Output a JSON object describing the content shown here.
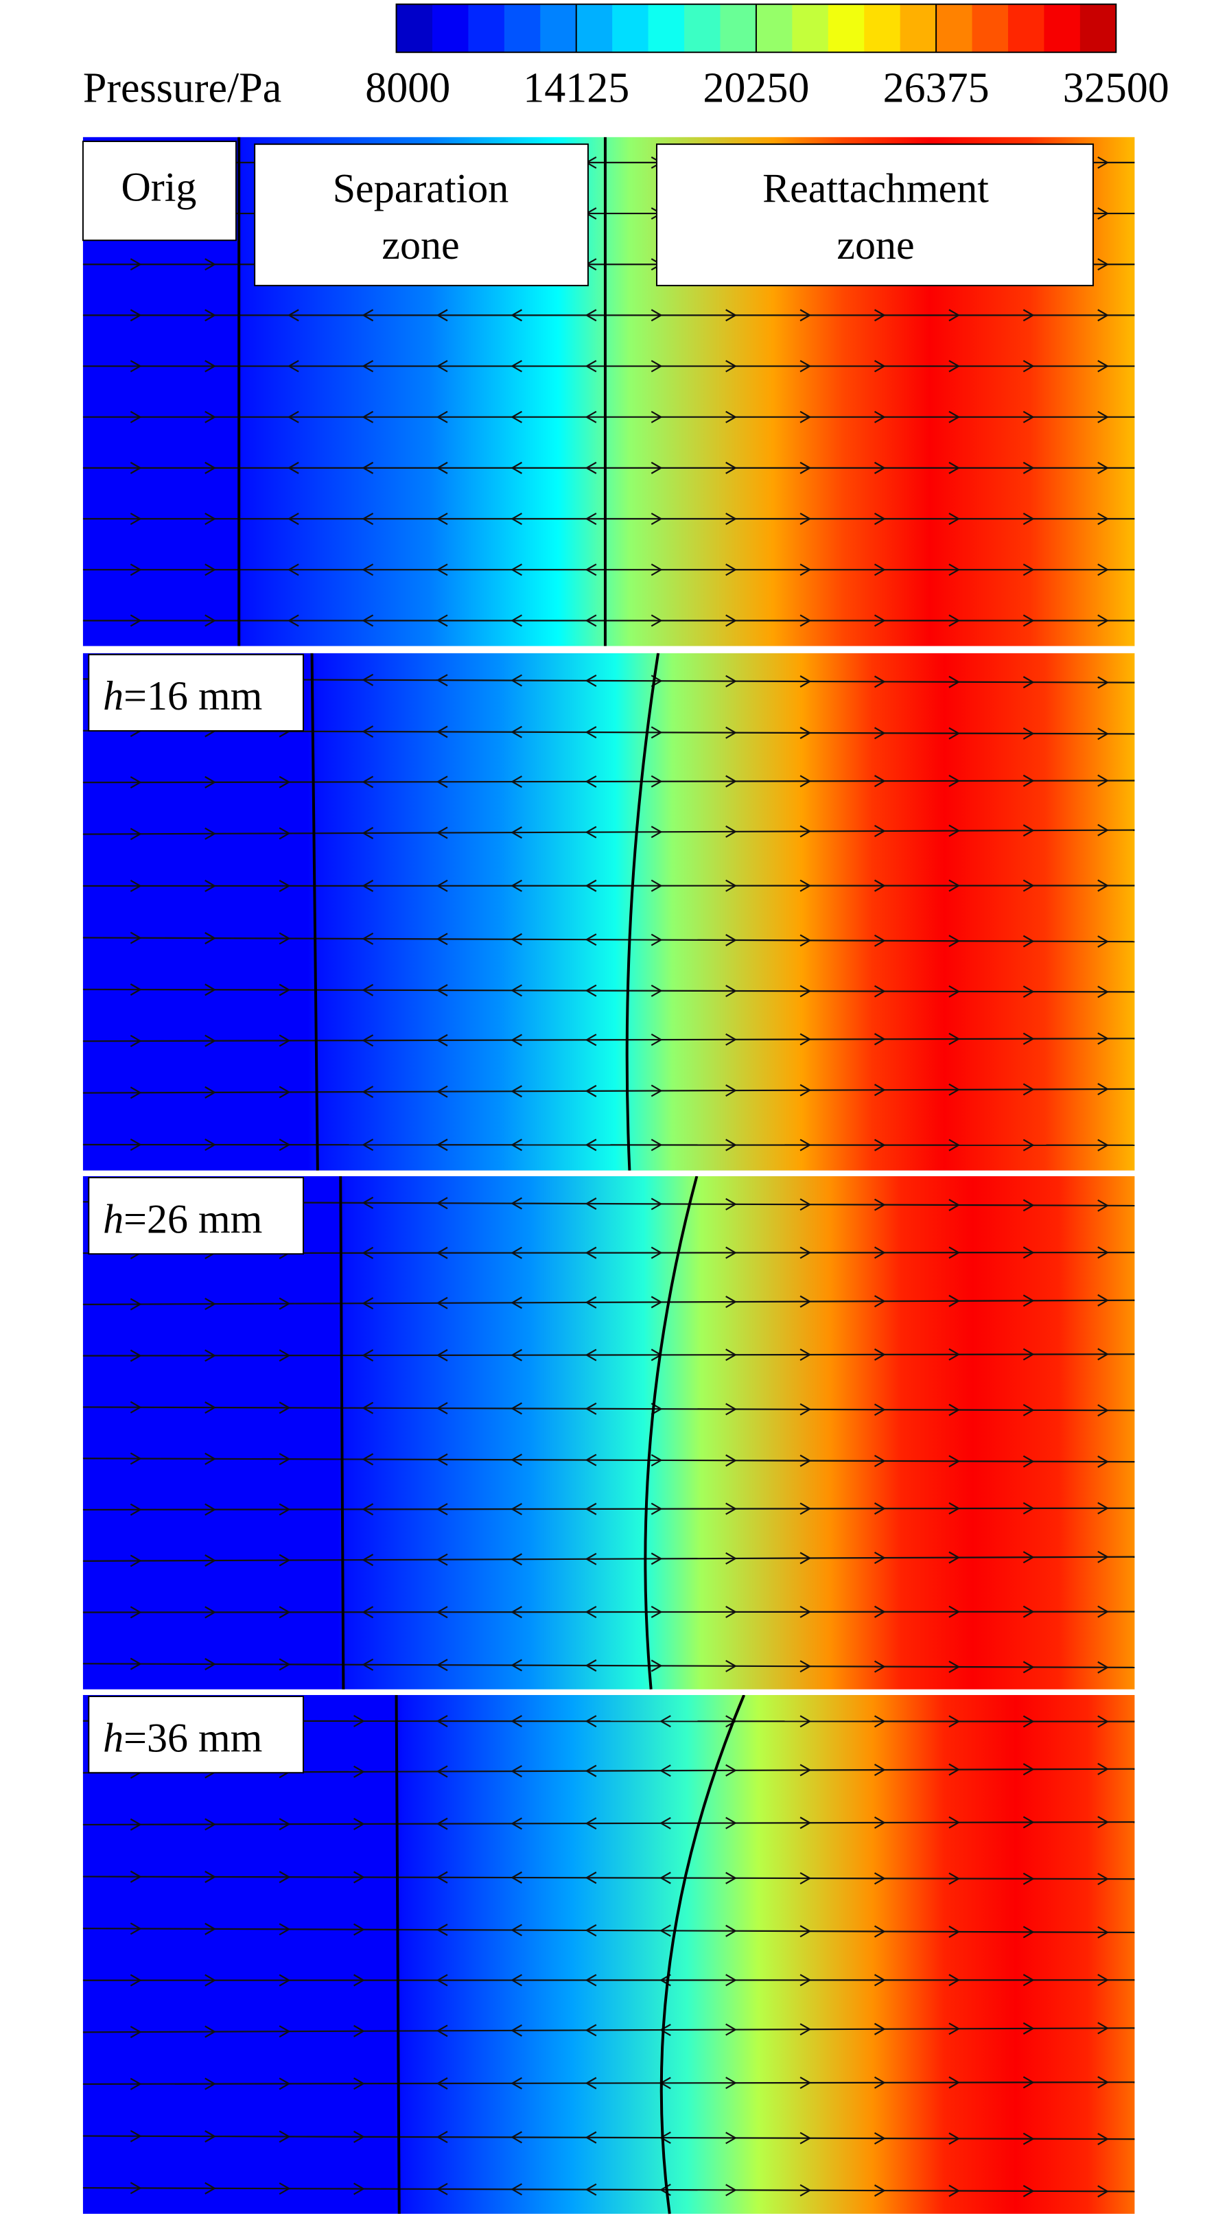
{
  "colorbar": {
    "label": "Pressure/Pa",
    "ticks": [
      8000,
      14125,
      20250,
      26375,
      32500
    ]
  },
  "panels": [
    {
      "labels": [
        "Orig",
        "Separation zone",
        "Reattachment zone"
      ]
    },
    {
      "symbol": "h",
      "text": "=16 mm"
    },
    {
      "symbol": "h",
      "text": "=26 mm"
    },
    {
      "symbol": "h",
      "text": "=36 mm"
    }
  ]
}
